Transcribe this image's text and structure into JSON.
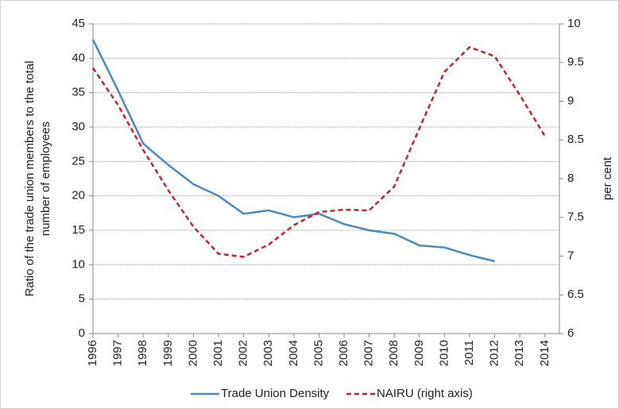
{
  "chart_data": {
    "type": "line",
    "ylabel": [
      "Ratio of the trade union members to the total",
      "number of employees"
    ],
    "y2label": "per cent",
    "categories": [
      "1996",
      "1997",
      "1998",
      "1999",
      "2000",
      "2001",
      "2002",
      "2003",
      "2004",
      "2005",
      "2006",
      "2007",
      "2008",
      "2009",
      "2010",
      "2011",
      "2012",
      "2013",
      "2014"
    ],
    "series": [
      {
        "name": "Trade Union Density",
        "color": "#4a8bbf",
        "dashed": false,
        "values": [
          42.7,
          35.3,
          27.6,
          24.5,
          21.7,
          20.0,
          17.4,
          17.9,
          16.9,
          17.4,
          15.9,
          15.0,
          14.5,
          12.8,
          12.5,
          11.4,
          10.5,
          null,
          null
        ]
      },
      {
        "name": "NAIRU (right axis)",
        "color": "#c0272d",
        "dashed": true,
        "axis": "y2",
        "values": [
          9.43,
          8.95,
          8.37,
          7.85,
          7.38,
          7.03,
          6.99,
          7.15,
          7.4,
          7.57,
          7.6,
          7.59,
          7.9,
          8.65,
          9.38,
          9.7,
          9.58,
          9.08,
          8.55
        ]
      }
    ],
    "ylim": [
      0,
      45
    ],
    "yticks": [
      0,
      5,
      10,
      15,
      20,
      25,
      30,
      35,
      40,
      45
    ],
    "y2lim": [
      6,
      10
    ],
    "y2ticks": [
      6,
      6.5,
      7,
      7.5,
      8,
      8.5,
      9,
      9.5,
      10
    ],
    "grid": true
  }
}
